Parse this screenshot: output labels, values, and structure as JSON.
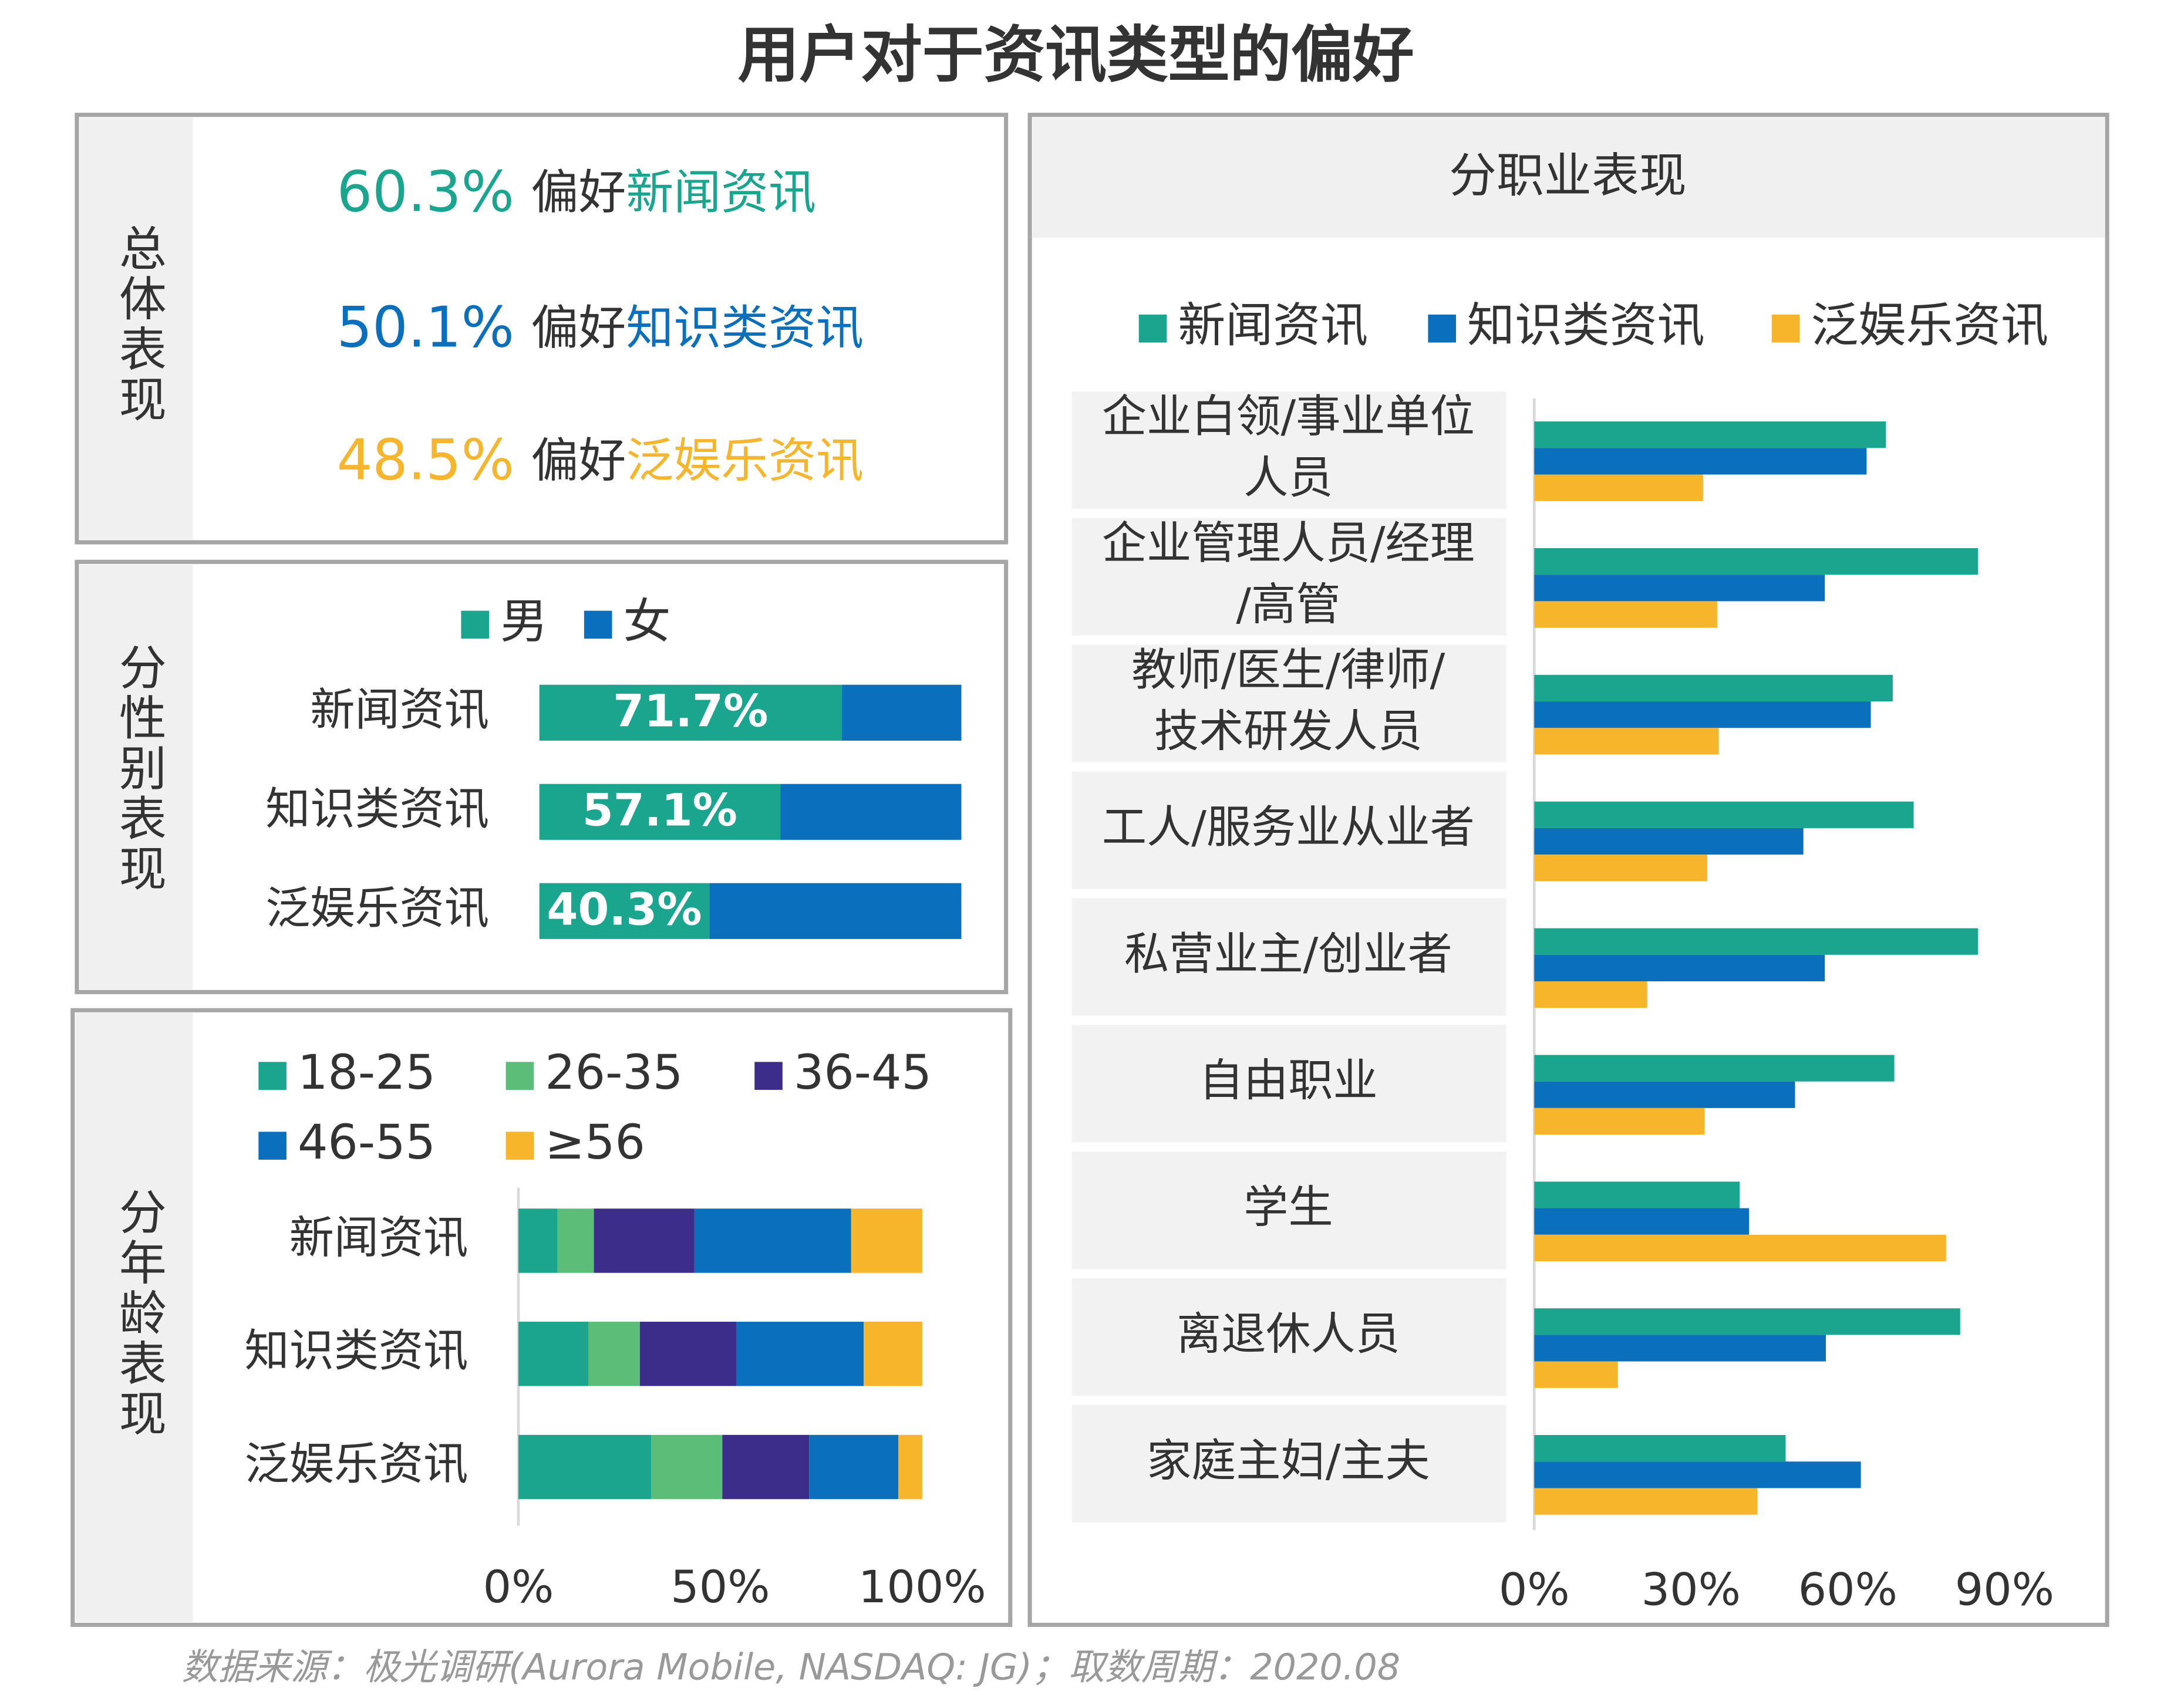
{
  "title": "用户对于资讯类型的偏好",
  "source": "数据来源：极光调研(Aurora Mobile, NASDAQ: JG)；取数周期：2020.08",
  "overall": {
    "label": "总体表现",
    "items": [
      {
        "value": "60.3%",
        "text": "偏好",
        "category": "新闻资讯",
        "color": "#1aa58e"
      },
      {
        "value": "50.1%",
        "text": "偏好",
        "category": "知识类资讯",
        "color": "#0a6fbd"
      },
      {
        "value": "48.5%",
        "text": "偏好",
        "category": "泛娱乐资讯",
        "color": "#f7b52c"
      }
    ]
  },
  "chart_data": [
    {
      "type": "stacked_bar",
      "label": "分性别表现",
      "categories": [
        "新闻资讯",
        "知识类资讯",
        "泛娱乐资讯"
      ],
      "series": [
        {
          "name": "男",
          "color": "#1aa58e",
          "values": [
            71.7,
            57.1,
            40.3
          ],
          "value_labels": [
            "71.7%",
            "57.1%",
            "40.3%"
          ]
        },
        {
          "name": "女",
          "color": "#0a6fbd",
          "values": [
            28.3,
            42.9,
            59.7
          ]
        }
      ],
      "xlim": [
        0,
        100
      ]
    },
    {
      "type": "stacked_bar",
      "label": "分年龄表现",
      "categories": [
        "新闻资讯",
        "知识类资讯",
        "泛娱乐资讯"
      ],
      "series": [
        {
          "name": "18-25",
          "color": "#1aa58e",
          "values": [
            9.7,
            17.3,
            32.9
          ]
        },
        {
          "name": "26-35",
          "color": "#5bbd78",
          "values": [
            9.0,
            12.8,
            17.6
          ]
        },
        {
          "name": "36-45",
          "color": "#3c2d8a",
          "values": [
            24.9,
            23.9,
            21.5
          ]
        },
        {
          "name": "46-55",
          "color": "#0a6fbd",
          "values": [
            38.8,
            31.5,
            22.1
          ]
        },
        {
          "name": "≥56",
          "color": "#f7b52c",
          "values": [
            17.6,
            14.5,
            5.9
          ]
        }
      ],
      "xlim": [
        0,
        100
      ],
      "xticks": [
        {
          "value": 0,
          "label": "0%"
        },
        {
          "value": 50,
          "label": "50%"
        },
        {
          "value": 100,
          "label": "100%"
        }
      ]
    },
    {
      "type": "grouped_bar",
      "label": "分职业表现",
      "categories": [
        "企业白领/事业单位人员",
        "企业管理人员/经理/高管",
        "教师/医生/律师/技术研发人员",
        "工人/服务业从业者",
        "私营业主/创业者",
        "自由职业",
        "学生",
        "离退休人员",
        "家庭主妇/主夫"
      ],
      "series": [
        {
          "name": "新闻资讯",
          "color": "#1aa58e",
          "values": [
            67.3,
            84.9,
            68.6,
            72.6,
            84.9,
            68.9,
            39.3,
            81.5,
            48.1
          ]
        },
        {
          "name": "知识类资讯",
          "color": "#0a6fbd",
          "values": [
            63.6,
            55.6,
            64.4,
            51.5,
            55.6,
            49.9,
            41.1,
            55.8,
            62.5
          ]
        },
        {
          "name": "泛娱乐资讯",
          "color": "#f7b52c",
          "values": [
            32.3,
            35.0,
            35.3,
            33.1,
            21.6,
            32.6,
            78.8,
            16.0,
            42.7
          ]
        }
      ],
      "xlim": [
        0,
        100
      ],
      "xticks": [
        {
          "value": 0,
          "label": "0%"
        },
        {
          "value": 30,
          "label": "30%"
        },
        {
          "value": 60,
          "label": "60%"
        },
        {
          "value": 90,
          "label": "90%"
        }
      ]
    }
  ]
}
